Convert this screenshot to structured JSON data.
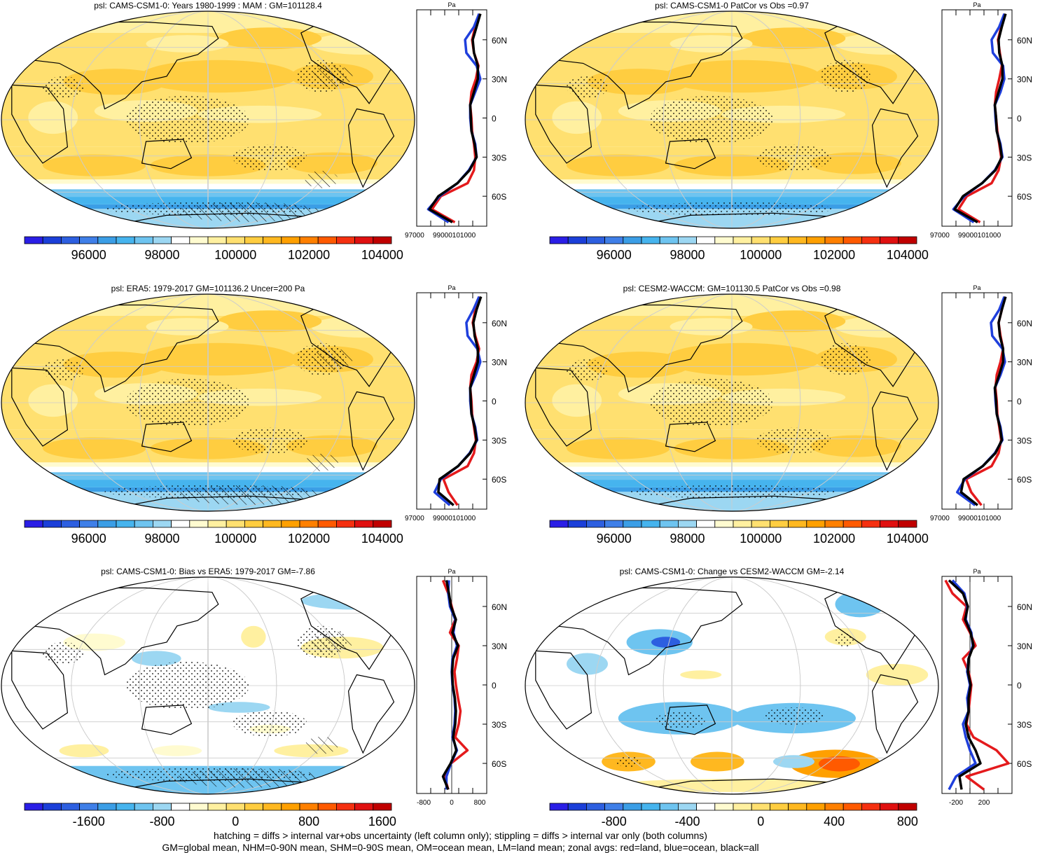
{
  "footnotes": [
    "hatching = diffs > internal var+obs uncertainty (left column only); stippling = diffs > internal var only (both columns)",
    "GM=global mean, NHM=0-90N mean, SHM=0-90S mean, OM=ocean mean, LM=land mean; zonal avgs: red=land, blue=ocean, black=all"
  ],
  "colors": {
    "land": "#e41a1c",
    "ocean": "#1f3fdc",
    "all": "#000000",
    "scale": [
      "#2a1ee6",
      "#1b3fd9",
      "#2d5fe0",
      "#3f7fe8",
      "#3b9ee6",
      "#46b4ee",
      "#6ec4f0",
      "#9cd7f2",
      "#ffffff",
      "#fffbd0",
      "#fff0a0",
      "#ffe070",
      "#ffcd40",
      "#ffb820",
      "#ffa000",
      "#ff8000",
      "#ff5a00",
      "#f53010",
      "#e01010",
      "#c00000"
    ]
  },
  "chart_data": [
    {
      "type": "heatmap",
      "title": "psl: CAMS-CSM1-0: Years 1980-1999 : MAM : GM=101128.4",
      "colorbar_ticks": [
        "96000",
        "98000",
        "100000",
        "102000",
        "104000"
      ],
      "pattern": "mean",
      "hatched": true,
      "zonal": {
        "unit": "Pa",
        "xlim": [
          97000,
          102500
        ],
        "xticks": [
          "97000",
          "99000101000"
        ],
        "lat_labels": [
          "60N",
          "30N",
          "0",
          "30S",
          "60S"
        ],
        "lat": [
          80,
          70,
          60,
          50,
          40,
          30,
          20,
          10,
          0,
          -10,
          -20,
          -30,
          -40,
          -50,
          -60,
          -70,
          -80
        ],
        "series": [
          {
            "name": "land",
            "values": [
              101900,
              101600,
              101350,
              101500,
              101850,
              101650,
              101300,
              101200,
              101300,
              101350,
              101500,
              101600,
              101500,
              101000,
              98900,
              98200,
              100000
            ]
          },
          {
            "name": "ocean",
            "values": [
              101900,
              101500,
              100800,
              100900,
              101700,
              102000,
              101600,
              101200,
              101200,
              101300,
              101600,
              101700,
              101100,
              100200,
              98800,
              97900,
              99500
            ]
          },
          {
            "name": "all",
            "values": [
              102000,
              101700,
              101400,
              101500,
              101800,
              101800,
              101500,
              101200,
              101250,
              101300,
              101550,
              101700,
              101150,
              100200,
              98700,
              98000,
              99800
            ]
          }
        ]
      }
    },
    {
      "type": "heatmap",
      "title": "psl: CAMS-CSM1-0 PatCor vs Obs =0.97",
      "colorbar_ticks": [
        "96000",
        "98000",
        "100000",
        "102000",
        "104000"
      ],
      "pattern": "mean",
      "hatched": false,
      "zonal": {
        "unit": "Pa",
        "xlim": [
          97000,
          102500
        ],
        "xticks": [
          "97000",
          "99000101000"
        ],
        "lat_labels": [
          "60N",
          "30N",
          "0",
          "30S",
          "60S"
        ],
        "lat": [
          80,
          70,
          60,
          50,
          40,
          30,
          20,
          10,
          0,
          -10,
          -20,
          -30,
          -40,
          -50,
          -60,
          -70,
          -80
        ],
        "series": [
          {
            "name": "land",
            "values": [
              101900,
              101650,
              101400,
              101550,
              101700,
              101500,
              101250,
              101150,
              101250,
              101350,
              101500,
              101650,
              101450,
              100900,
              98950,
              98300,
              100000
            ]
          },
          {
            "name": "ocean",
            "values": [
              101900,
              101500,
              100900,
              101000,
              101800,
              101900,
              101600,
              101150,
              101200,
              101300,
              101600,
              101750,
              101150,
              100150,
              98750,
              97900,
              99500
            ]
          },
          {
            "name": "all",
            "values": [
              102000,
              101700,
              101450,
              101500,
              101750,
              101750,
              101450,
              101150,
              101250,
              101300,
              101550,
              101700,
              101200,
              100150,
              98650,
              98000,
              99800
            ]
          }
        ]
      }
    },
    {
      "type": "heatmap",
      "title": "psl: ERA5: 1979-2017 GM=101136.2 Uncer=200 Pa",
      "colorbar_ticks": [
        "96000",
        "98000",
        "100000",
        "102000",
        "104000"
      ],
      "pattern": "mean",
      "hatched": true,
      "zonal": {
        "unit": "Pa",
        "xlim": [
          97000,
          102500
        ],
        "xticks": [
          "97000",
          "99000101000"
        ],
        "lat_labels": [
          "60N",
          "30N",
          "0",
          "30S",
          "60S"
        ],
        "lat": [
          80,
          70,
          60,
          50,
          40,
          30,
          20,
          10,
          0,
          -10,
          -20,
          -30,
          -40,
          -50,
          -60,
          -70,
          -80
        ],
        "series": [
          {
            "name": "land",
            "values": [
              101950,
              101600,
              101400,
              101600,
              101900,
              101700,
              101300,
              101200,
              101300,
              101350,
              101500,
              101650,
              101500,
              101000,
              99100,
              99500,
              100200
            ]
          },
          {
            "name": "ocean",
            "values": [
              101900,
              101450,
              100900,
              101000,
              101750,
              102000,
              101650,
              101200,
              101200,
              101300,
              101600,
              101750,
              101150,
              100250,
              98900,
              98400,
              99600
            ]
          },
          {
            "name": "all",
            "values": [
              102050,
              101700,
              101450,
              101550,
              101800,
              101800,
              101500,
              101200,
              101250,
              101300,
              101550,
              101700,
              101200,
              100250,
              98800,
              98700,
              99900
            ]
          }
        ]
      }
    },
    {
      "type": "heatmap",
      "title": "psl: CESM2-WACCM: GM=101130.5 PatCor vs Obs =0.98",
      "colorbar_ticks": [
        "96000",
        "98000",
        "100000",
        "102000",
        "104000"
      ],
      "pattern": "mean",
      "hatched": false,
      "zonal": {
        "unit": "Pa",
        "xlim": [
          97000,
          102500
        ],
        "xticks": [
          "97000",
          "99000101000"
        ],
        "lat_labels": [
          "60N",
          "30N",
          "0",
          "30S",
          "60S"
        ],
        "lat": [
          80,
          70,
          60,
          50,
          40,
          30,
          20,
          10,
          0,
          -10,
          -20,
          -30,
          -40,
          -50,
          -60,
          -70,
          -80
        ],
        "series": [
          {
            "name": "land",
            "values": [
              101900,
              101700,
              101450,
              101600,
              101800,
              101600,
              101300,
              101200,
              101300,
              101350,
              101500,
              101650,
              101450,
              100900,
              98900,
              99300,
              100100
            ]
          },
          {
            "name": "ocean",
            "values": [
              101900,
              101500,
              100850,
              100950,
              101750,
              101950,
              101600,
              101150,
              101200,
              101300,
              101600,
              101750,
              101150,
              100200,
              98800,
              98200,
              99600
            ]
          },
          {
            "name": "all",
            "values": [
              102000,
              101700,
              101450,
              101550,
              101800,
              101800,
              101500,
              101150,
              101250,
              101300,
              101550,
              101700,
              101200,
              100200,
              98700,
              98500,
              99800
            ]
          }
        ]
      }
    },
    {
      "type": "heatmap",
      "title": "psl: CAMS-CSM1-0: Bias vs ERA5: 1979-2017 GM=-7.86",
      "colorbar_ticks": [
        "-1600",
        "-800",
        "0",
        "800",
        "1600"
      ],
      "pattern": "bias",
      "hatched": true,
      "zonal": {
        "unit": "Pa",
        "xlim": [
          -1000,
          1000
        ],
        "xticks": [
          "-800",
          "0",
          "800"
        ],
        "lat_labels": [
          "60N",
          "30N",
          "0",
          "30S",
          "60S"
        ],
        "lat": [
          80,
          70,
          60,
          50,
          40,
          30,
          20,
          10,
          0,
          -10,
          -20,
          -30,
          -40,
          -50,
          -60,
          -70,
          -80
        ],
        "series": [
          {
            "name": "land",
            "values": [
              -250,
              -100,
              0,
              100,
              -50,
              200,
              150,
              80,
              120,
              180,
              250,
              200,
              100,
              450,
              -20,
              -200,
              -100
            ]
          },
          {
            "name": "ocean",
            "values": [
              -80,
              -100,
              -50,
              100,
              50,
              150,
              20,
              0,
              20,
              80,
              100,
              80,
              20,
              150,
              -20,
              -150,
              -150
            ]
          },
          {
            "name": "all",
            "values": [
              -150,
              -80,
              -20,
              120,
              20,
              180,
              40,
              10,
              30,
              90,
              120,
              100,
              40,
              130,
              -30,
              -250,
              -100
            ]
          }
        ]
      }
    },
    {
      "type": "heatmap",
      "title": "psl: CAMS-CSM1-0: Change vs CESM2-WACCM GM=-2.14",
      "colorbar_ticks": [
        "-800",
        "-400",
        "0",
        "400",
        "800"
      ],
      "pattern": "change",
      "hatched": false,
      "zonal": {
        "unit": "Pa",
        "xlim": [
          -400,
          600
        ],
        "xticks": [
          "-200",
          "200"
        ],
        "lat_labels": [
          "60N",
          "30N",
          "0",
          "30S",
          "60S"
        ],
        "lat": [
          80,
          70,
          60,
          50,
          40,
          30,
          20,
          10,
          0,
          -10,
          -20,
          -30,
          -40,
          -50,
          -60,
          -70,
          -80
        ],
        "series": [
          {
            "name": "land",
            "values": [
              -350,
              -250,
              -50,
              -100,
              0,
              80,
              -100,
              -20,
              20,
              0,
              -20,
              -50,
              50,
              380,
              550,
              -50,
              200
            ]
          },
          {
            "name": "ocean",
            "values": [
              -250,
              -80,
              -40,
              -60,
              20,
              40,
              -20,
              -40,
              0,
              -40,
              -20,
              -100,
              -60,
              0,
              80,
              -200,
              -300
            ]
          },
          {
            "name": "all",
            "values": [
              -300,
              -100,
              -30,
              -70,
              10,
              50,
              -20,
              -30,
              10,
              -20,
              -20,
              -60,
              -20,
              80,
              150,
              -150,
              -120
            ]
          }
        ]
      }
    }
  ]
}
